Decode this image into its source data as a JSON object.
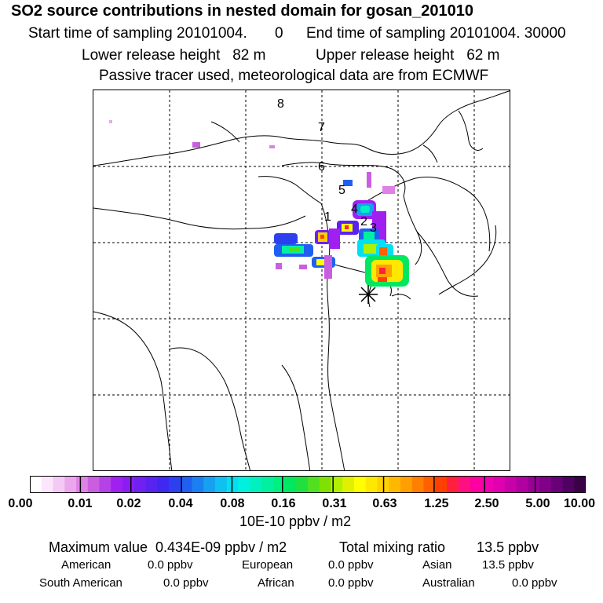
{
  "header": {
    "title": "SO2 source contributions in nested domain for gosan_201010",
    "start": "Start time of sampling 20101004.",
    "start_val": "0",
    "end": "End time of sampling 20101004. 30000",
    "lower": "Lower release height   82 m",
    "upper": "Upper release height   62 m",
    "tracer": "Passive tracer used, meteorological data are from ECMWF"
  },
  "map": {
    "labels": [
      "8",
      "7",
      "6",
      "5",
      "4",
      "2",
      "3",
      "1"
    ]
  },
  "colorbar": {
    "ticks": [
      "0.00",
      "0.01",
      "0.02",
      "0.04",
      "0.08",
      "0.16",
      "0.31",
      "0.63",
      "1.25",
      "2.50",
      "5.00",
      "10.00"
    ],
    "unit": "10E-10 ppbv / m2",
    "colors": [
      "#ffffff",
      "#fbe6fb",
      "#f4c9f4",
      "#eba7eb",
      "#df82e6",
      "#c95fe0",
      "#b542e6",
      "#a020f0",
      "#8a1ef0",
      "#7020f0",
      "#5a22f0",
      "#3f28f0",
      "#2c40f0",
      "#2060f0",
      "#1a80f0",
      "#18a0f0",
      "#10c0f0",
      "#00e0f0",
      "#00f0e0",
      "#00f0c0",
      "#00f0a0",
      "#00f080",
      "#00e860",
      "#20e040",
      "#50e020",
      "#80e000",
      "#b0f000",
      "#e0f000",
      "#ffff00",
      "#ffe800",
      "#ffd000",
      "#ffb800",
      "#ffa000",
      "#ff8000",
      "#ff6000",
      "#ff4000",
      "#ff2040",
      "#ff1080",
      "#ff00a0",
      "#f000b0",
      "#e000b0",
      "#c800a8",
      "#b000a0",
      "#980098",
      "#800088",
      "#680078",
      "#500060",
      "#3a0048"
    ]
  },
  "footer": {
    "max_label": "Maximum value  0.434E-09 ppbv / m2",
    "total_label": "Total mixing ratio        13.5 ppbv",
    "american": "American",
    "american_v": "0.0 ppbv",
    "european": "European",
    "european_v": "0.0 ppbv",
    "asian": "Asian",
    "asian_v": "13.5 ppbv",
    "south_american": "South American",
    "south_american_v": "0.0 ppbv",
    "african": "African",
    "african_v": "0.0 ppbv",
    "australian": "Australian",
    "australian_v": "0.0 ppbv"
  }
}
